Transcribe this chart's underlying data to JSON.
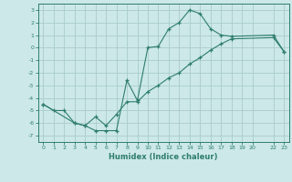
{
  "xlabel": "Humidex (Indice chaleur)",
  "xlim": [
    -0.5,
    23.5
  ],
  "ylim": [
    -7.5,
    3.5
  ],
  "xticks": [
    0,
    1,
    2,
    3,
    4,
    5,
    6,
    7,
    8,
    9,
    10,
    11,
    12,
    13,
    14,
    15,
    16,
    17,
    18,
    19,
    20,
    22,
    23
  ],
  "yticks": [
    -7,
    -6,
    -5,
    -4,
    -3,
    -2,
    -1,
    0,
    1,
    2,
    3
  ],
  "line_color": "#2e7d6e",
  "bg_color": "#cce8e8",
  "grid_color": "#aacccc",
  "line1_x": [
    0,
    1,
    2,
    3,
    4,
    5,
    6,
    7,
    8,
    9,
    10,
    11,
    12,
    13,
    14,
    15,
    16,
    17,
    18,
    22,
    23
  ],
  "line1_y": [
    -4.5,
    -5.0,
    -5.0,
    -6.0,
    -6.2,
    -6.6,
    -6.6,
    -6.6,
    -2.6,
    -4.2,
    0.0,
    0.1,
    1.5,
    2.0,
    3.0,
    2.7,
    1.5,
    1.0,
    0.9,
    1.0,
    -0.3
  ],
  "line2_x": [
    0,
    3,
    4,
    5,
    6,
    7,
    8,
    9,
    10,
    11,
    12,
    13,
    14,
    15,
    16,
    17,
    18,
    22,
    23
  ],
  "line2_y": [
    -4.5,
    -6.0,
    -6.2,
    -5.5,
    -6.2,
    -5.3,
    -4.3,
    -4.3,
    -3.5,
    -3.0,
    -2.4,
    -2.0,
    -1.3,
    -0.8,
    -0.2,
    0.3,
    0.7,
    0.8,
    -0.3
  ]
}
